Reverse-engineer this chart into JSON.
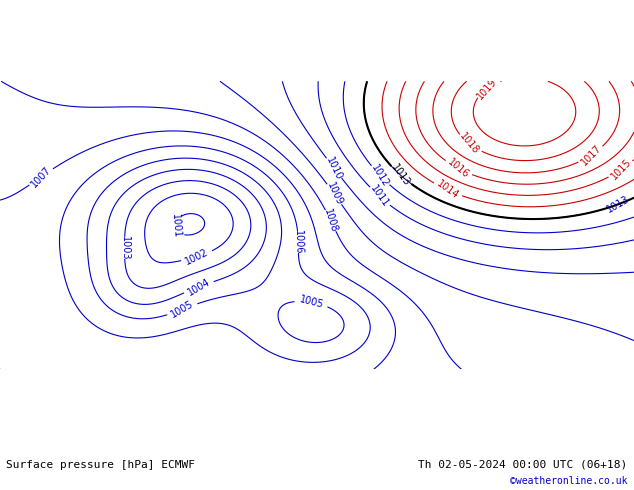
{
  "title_left": "Surface pressure [hPa] ECMWF",
  "title_right": "Th 02-05-2024 00:00 UTC (06+18)",
  "watermark": "©weatheronline.co.uk",
  "bg_color": "#c8e6c9",
  "land_color": "#c8e6c9",
  "sea_color": "#d0d0d0",
  "blue_contour_color": "#0000cc",
  "red_contour_color": "#cc0000",
  "black_contour_color": "#000000",
  "label_fontsize": 7,
  "title_fontsize": 8,
  "watermark_color": "#0000cc",
  "figsize": [
    6.34,
    4.9
  ],
  "dpi": 100
}
